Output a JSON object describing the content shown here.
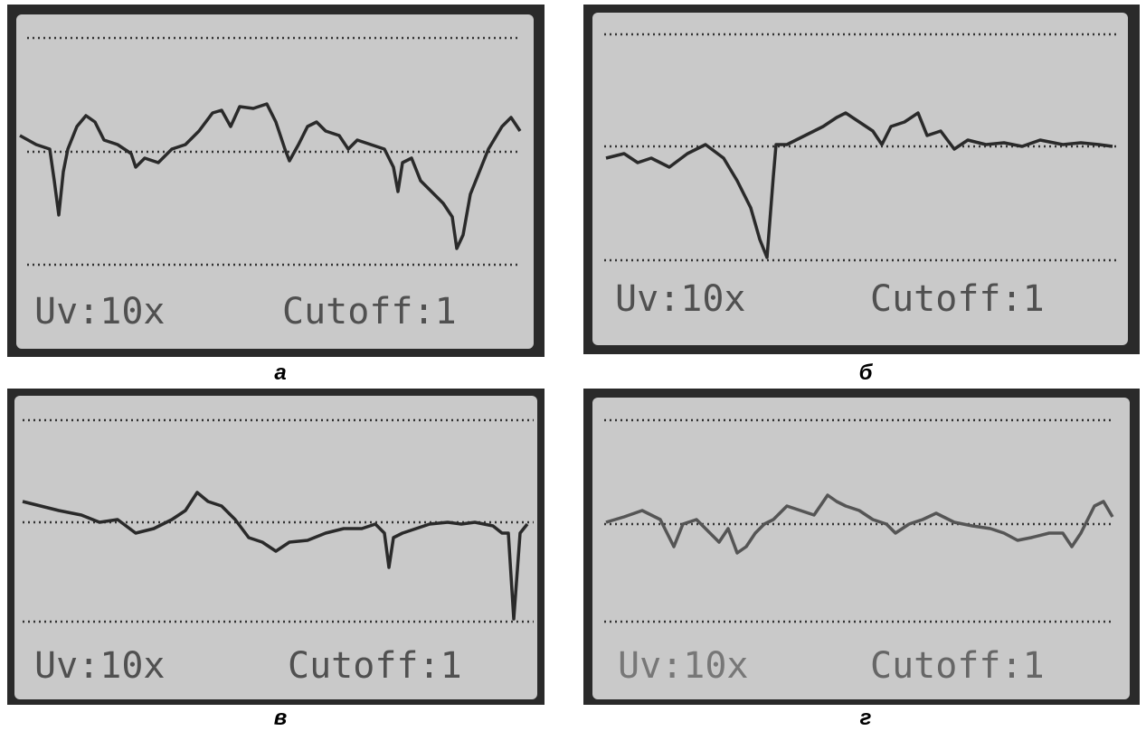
{
  "panels": [
    {
      "caption": "а",
      "gain": "Uv:10x",
      "cutoff": "Cutoff:1"
    },
    {
      "caption": "б",
      "gain": "Uv:10x",
      "cutoff": "Cutoff:1"
    },
    {
      "caption": "в",
      "gain": "Uv:10x",
      "cutoff": "Cutoff:1"
    },
    {
      "caption": "г",
      "gain": "Uv:10x",
      "cutoff": "Cutoff:1"
    }
  ]
}
